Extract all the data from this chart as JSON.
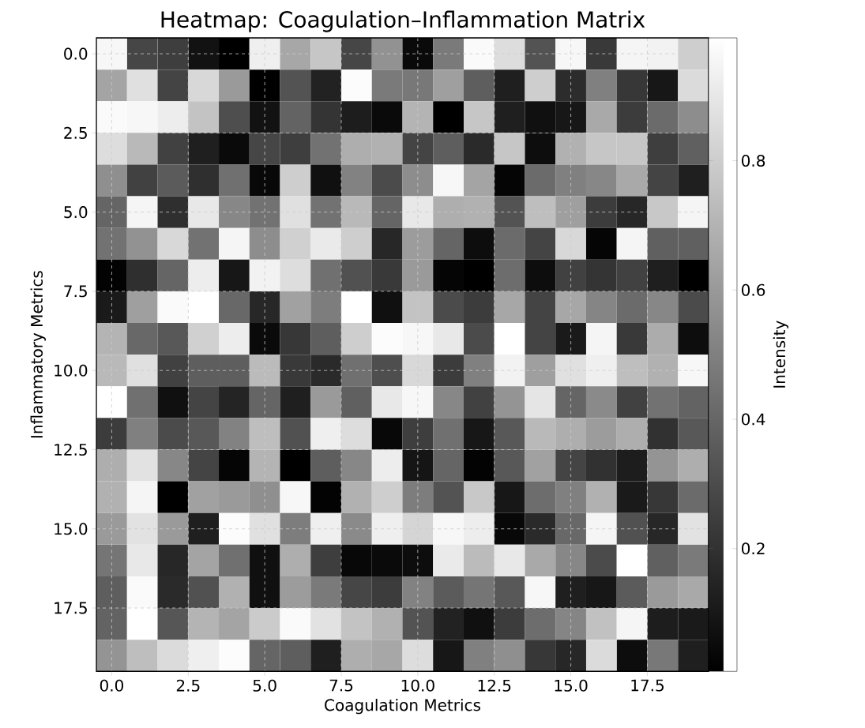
{
  "chart_data": {
    "type": "heatmap",
    "title": "Heatmap: Coagulation–Inflammation Matrix",
    "xlabel": "Coagulation Metrics",
    "ylabel": "Inflammatory Metrics",
    "clabel": "Intensity",
    "xlim": [
      -0.5,
      19.5
    ],
    "ylim": [
      19.5,
      -0.5
    ],
    "xticks": [
      {
        "value": 0,
        "label": "0.0"
      },
      {
        "value": 2.5,
        "label": "2.5"
      },
      {
        "value": 5,
        "label": "5.0"
      },
      {
        "value": 7.5,
        "label": "7.5"
      },
      {
        "value": 10,
        "label": "10.0"
      },
      {
        "value": 12.5,
        "label": "12.5"
      },
      {
        "value": 15,
        "label": "15.0"
      },
      {
        "value": 17.5,
        "label": "17.5"
      }
    ],
    "yticks": [
      {
        "value": 0,
        "label": "0.0"
      },
      {
        "value": 2.5,
        "label": "2.5"
      },
      {
        "value": 5,
        "label": "5.0"
      },
      {
        "value": 7.5,
        "label": "7.5"
      },
      {
        "value": 10,
        "label": "10.0"
      },
      {
        "value": 12.5,
        "label": "12.5"
      },
      {
        "value": 15,
        "label": "15.0"
      },
      {
        "value": 17.5,
        "label": "17.5"
      }
    ],
    "clim": [
      0.01,
      0.99
    ],
    "cticks": [
      0.2,
      0.4,
      0.6,
      0.8
    ],
    "grid": true,
    "cells": [
      [
        0.96,
        0.28,
        0.25,
        0.08,
        0.01,
        0.93,
        0.65,
        0.77,
        0.28,
        0.57,
        0.05,
        0.48,
        0.97,
        0.86,
        0.33,
        0.96,
        0.23,
        0.95,
        0.94,
        0.8
      ],
      [
        0.64,
        0.87,
        0.27,
        0.84,
        0.6,
        0.01,
        0.33,
        0.14,
        0.98,
        0.48,
        0.47,
        0.62,
        0.37,
        0.13,
        0.8,
        0.18,
        0.5,
        0.22,
        0.1,
        0.85
      ],
      [
        0.97,
        0.96,
        0.92,
        0.76,
        0.31,
        0.08,
        0.39,
        0.21,
        0.12,
        0.05,
        0.7,
        0.01,
        0.77,
        0.13,
        0.07,
        0.1,
        0.66,
        0.24,
        0.42,
        0.55
      ],
      [
        0.86,
        0.72,
        0.26,
        0.13,
        0.05,
        0.28,
        0.25,
        0.45,
        0.68,
        0.69,
        0.27,
        0.37,
        0.17,
        0.77,
        0.06,
        0.69,
        0.77,
        0.77,
        0.25,
        0.38
      ],
      [
        0.56,
        0.26,
        0.36,
        0.19,
        0.44,
        0.04,
        0.8,
        0.07,
        0.51,
        0.3,
        0.55,
        0.96,
        0.64,
        0.03,
        0.42,
        0.5,
        0.53,
        0.66,
        0.27,
        0.13
      ],
      [
        0.4,
        0.95,
        0.19,
        0.9,
        0.53,
        0.45,
        0.87,
        0.45,
        0.72,
        0.4,
        0.9,
        0.68,
        0.69,
        0.33,
        0.74,
        0.62,
        0.24,
        0.16,
        0.78,
        0.95
      ],
      [
        0.45,
        0.57,
        0.84,
        0.45,
        0.95,
        0.55,
        0.81,
        0.91,
        0.8,
        0.16,
        0.61,
        0.4,
        0.06,
        0.42,
        0.27,
        0.84,
        0.03,
        0.95,
        0.38,
        0.38
      ],
      [
        0.02,
        0.19,
        0.4,
        0.92,
        0.1,
        0.94,
        0.86,
        0.44,
        0.32,
        0.23,
        0.6,
        0.03,
        0.01,
        0.43,
        0.06,
        0.26,
        0.21,
        0.26,
        0.13,
        0.01
      ],
      [
        0.11,
        0.62,
        0.97,
        0.99,
        0.41,
        0.16,
        0.63,
        0.49,
        0.99,
        0.07,
        0.76,
        0.3,
        0.24,
        0.65,
        0.27,
        0.65,
        0.52,
        0.42,
        0.53,
        0.3
      ],
      [
        0.7,
        0.41,
        0.35,
        0.81,
        0.92,
        0.05,
        0.22,
        0.37,
        0.8,
        0.98,
        0.96,
        0.9,
        0.3,
        0.99,
        0.27,
        0.11,
        0.95,
        0.23,
        0.67,
        0.06
      ],
      [
        0.72,
        0.87,
        0.26,
        0.37,
        0.37,
        0.73,
        0.23,
        0.17,
        0.44,
        0.31,
        0.84,
        0.24,
        0.5,
        0.94,
        0.62,
        0.87,
        0.93,
        0.74,
        0.69,
        0.96
      ],
      [
        0.99,
        0.44,
        0.07,
        0.27,
        0.15,
        0.4,
        0.13,
        0.6,
        0.38,
        0.9,
        0.96,
        0.53,
        0.26,
        0.58,
        0.89,
        0.4,
        0.54,
        0.26,
        0.45,
        0.39
      ],
      [
        0.24,
        0.5,
        0.3,
        0.35,
        0.51,
        0.74,
        0.32,
        0.93,
        0.86,
        0.04,
        0.25,
        0.44,
        0.1,
        0.35,
        0.72,
        0.68,
        0.61,
        0.68,
        0.2,
        0.35
      ],
      [
        0.68,
        0.88,
        0.53,
        0.27,
        0.03,
        0.7,
        0.01,
        0.37,
        0.53,
        0.92,
        0.09,
        0.4,
        0.02,
        0.35,
        0.63,
        0.27,
        0.2,
        0.12,
        0.58,
        0.68
      ],
      [
        0.69,
        0.95,
        0.01,
        0.63,
        0.6,
        0.56,
        0.96,
        0.02,
        0.69,
        0.8,
        0.49,
        0.33,
        0.78,
        0.1,
        0.43,
        0.5,
        0.69,
        0.11,
        0.22,
        0.42
      ],
      [
        0.6,
        0.88,
        0.6,
        0.13,
        0.98,
        0.87,
        0.49,
        0.93,
        0.54,
        0.93,
        0.83,
        0.96,
        0.92,
        0.04,
        0.17,
        0.41,
        0.95,
        0.32,
        0.16,
        0.88
      ],
      [
        0.46,
        0.9,
        0.16,
        0.64,
        0.44,
        0.07,
        0.68,
        0.25,
        0.04,
        0.05,
        0.06,
        0.91,
        0.73,
        0.9,
        0.66,
        0.53,
        0.3,
        0.99,
        0.38,
        0.48
      ],
      [
        0.37,
        0.97,
        0.17,
        0.32,
        0.69,
        0.07,
        0.61,
        0.48,
        0.28,
        0.24,
        0.51,
        0.36,
        0.46,
        0.35,
        0.96,
        0.13,
        0.1,
        0.36,
        0.6,
        0.66
      ],
      [
        0.39,
        0.99,
        0.34,
        0.7,
        0.64,
        0.79,
        0.97,
        0.88,
        0.76,
        0.69,
        0.33,
        0.14,
        0.07,
        0.24,
        0.43,
        0.52,
        0.75,
        0.95,
        0.12,
        0.11
      ],
      [
        0.58,
        0.74,
        0.85,
        0.93,
        0.98,
        0.4,
        0.37,
        0.13,
        0.68,
        0.65,
        0.86,
        0.1,
        0.5,
        0.56,
        0.22,
        0.16,
        0.85,
        0.06,
        0.47,
        0.13
      ]
    ]
  }
}
